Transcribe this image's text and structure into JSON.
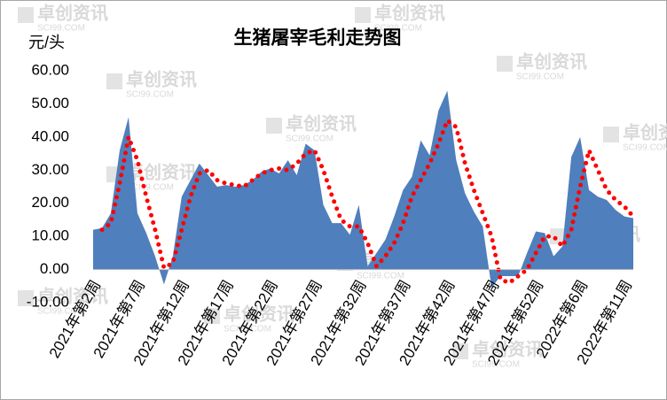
{
  "chart_data": {
    "type": "area",
    "title": "生猪屠宰毛利走势图",
    "y_unit_label": "元/头",
    "watermark": [
      "卓创资讯",
      "SCI99.COM"
    ],
    "categories": [
      "2021年第2周",
      null,
      null,
      null,
      null,
      "2021年第7周",
      null,
      null,
      null,
      null,
      "2021年第12周",
      null,
      null,
      null,
      null,
      "2021年第17周",
      null,
      null,
      null,
      null,
      "2021年第22周",
      null,
      null,
      null,
      null,
      "2021年第27周",
      null,
      null,
      null,
      null,
      "2021年第32周",
      null,
      null,
      null,
      null,
      "2021年第37周",
      null,
      null,
      null,
      null,
      "2021年第42周",
      null,
      null,
      null,
      null,
      "2021年第47周",
      null,
      null,
      null,
      null,
      "2021年第52周",
      null,
      null,
      null,
      null,
      "2022年第6周",
      null,
      null,
      null,
      null,
      "2022年第11周",
      null
    ],
    "series": [
      {
        "color": "#4f7fbc",
        "values": [
          12,
          12.5,
          17,
          36,
          46,
          17,
          11,
          4,
          -4.5,
          4,
          22,
          27,
          32,
          28.5,
          25,
          25.5,
          25,
          25.5,
          27,
          29.5,
          30.5,
          29,
          33,
          28.5,
          38,
          36,
          19.5,
          14,
          14,
          10.5,
          19.5,
          1,
          5,
          9,
          16,
          24,
          28,
          39,
          34.5,
          48,
          54,
          33,
          23,
          17.5,
          13,
          -5.5,
          -2,
          -2,
          -2,
          5,
          11.5,
          11,
          4,
          7,
          34,
          40,
          24,
          22,
          21,
          18,
          16,
          15.5
        ]
      },
      {
        "type": "line",
        "color": "#ff0000",
        "values": [
          null,
          12,
          14,
          26,
          40,
          33,
          22,
          12,
          0.5,
          2,
          12,
          22,
          29,
          30,
          27,
          26,
          25.5,
          25,
          27,
          29,
          30,
          30.5,
          30,
          32,
          35,
          36,
          30,
          22,
          15,
          13,
          13,
          8,
          1,
          4,
          8,
          14,
          22,
          27,
          32,
          38,
          45,
          43,
          32,
          24,
          17,
          10,
          -3,
          -4,
          -2,
          0,
          5,
          10,
          10,
          7,
          12,
          25,
          36,
          30,
          24,
          21,
          19,
          16
        ]
      }
    ],
    "ylim": [
      -10,
      60
    ],
    "yticks": [
      {
        "value": -10,
        "label": "-10.00"
      },
      {
        "value": 0,
        "label": "0.00"
      },
      {
        "value": 10,
        "label": "10.00"
      },
      {
        "value": 20,
        "label": "20.00"
      },
      {
        "value": 30,
        "label": "30.00"
      },
      {
        "value": 40,
        "label": "40.00"
      },
      {
        "value": 50,
        "label": "50.00"
      },
      {
        "value": 60,
        "label": "60.00"
      }
    ],
    "grid": false
  }
}
